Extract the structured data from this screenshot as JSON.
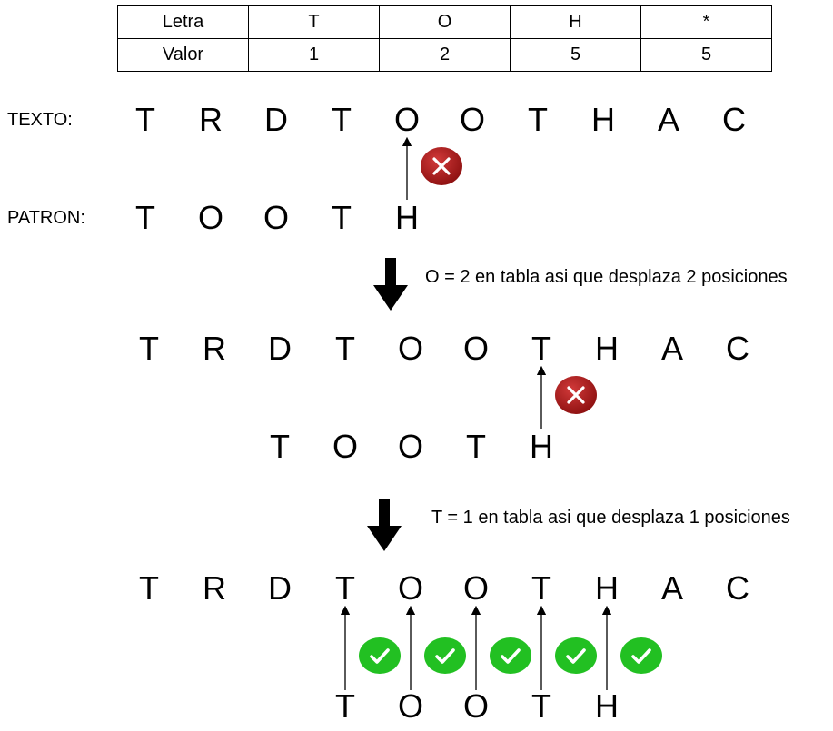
{
  "table": {
    "header": [
      "Letra",
      "T",
      "O",
      "H",
      "*"
    ],
    "row": [
      "Valor",
      "1",
      "2",
      "5",
      "5"
    ]
  },
  "labels": {
    "texto": "TEXTO:",
    "patron": "PATRON:"
  },
  "text_chars": [
    "T",
    "R",
    "D",
    "T",
    "O",
    "O",
    "T",
    "H",
    "A",
    "C"
  ],
  "pattern_chars": [
    "T",
    "O",
    "O",
    "T",
    "H"
  ],
  "steps": [
    {
      "shift": 0,
      "compared": [
        4
      ],
      "results": [
        "fail"
      ]
    },
    {
      "shift": 2,
      "compared": [
        4
      ],
      "results": [
        "fail"
      ],
      "note": "O = 2 en tabla asi que desplaza 2 posiciones"
    },
    {
      "shift": 3,
      "compared": [
        0,
        1,
        2,
        3,
        4
      ],
      "results": [
        "ok",
        "ok",
        "ok",
        "ok",
        "ok"
      ],
      "note": "T = 1 en tabla asi que desplaza 1 posiciones"
    }
  ],
  "colors": {
    "fail": "#8b0f0f",
    "ok": "#22c022",
    "arrow": "#000000"
  },
  "icons": {
    "fail": "cross-icon",
    "ok": "check-icon",
    "step": "down-arrow-icon"
  }
}
